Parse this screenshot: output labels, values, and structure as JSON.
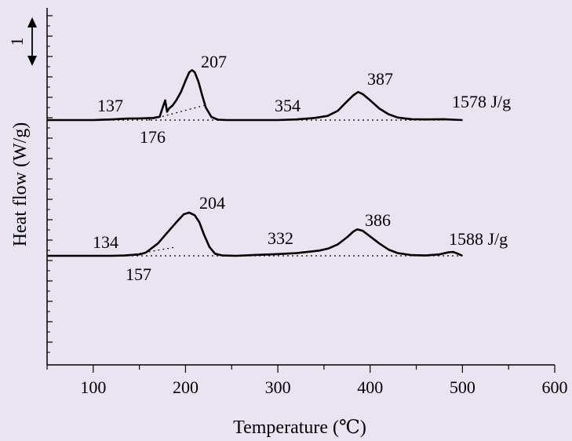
{
  "chart_data": {
    "type": "line",
    "title": "",
    "xlabel": "Temperature (℃)",
    "ylabel": "Heat flow (W/g)",
    "xlim": [
      50,
      600
    ],
    "xticks": [
      100,
      200,
      300,
      400,
      500,
      600
    ],
    "yticks_labeled": false,
    "grid": false,
    "legend": "none",
    "arrow_label": "1",
    "series": [
      {
        "x": [
          50,
          80,
          100,
          120,
          137,
          150,
          165,
          172,
          176,
          178,
          180,
          182,
          186,
          190,
          195,
          200,
          204,
          207,
          210,
          214,
          218,
          222,
          228,
          235,
          245,
          260,
          280,
          300,
          320,
          340,
          354,
          365,
          375,
          382,
          387,
          392,
          400,
          410,
          420,
          430,
          445,
          460,
          480,
          490,
          500
        ],
        "y": [
          0.0,
          0.0,
          0.0,
          0.03,
          0.07,
          0.08,
          0.1,
          0.16,
          0.7,
          0.95,
          0.4,
          0.55,
          0.7,
          0.95,
          1.35,
          1.9,
          2.3,
          2.4,
          2.3,
          1.85,
          1.2,
          0.6,
          0.15,
          0.02,
          0.0,
          0.0,
          0.0,
          0.0,
          0.03,
          0.1,
          0.2,
          0.45,
          0.9,
          1.2,
          1.35,
          1.25,
          0.95,
          0.55,
          0.28,
          0.12,
          0.04,
          0.03,
          0.04,
          0.02,
          0.0
        ]
      },
      {
        "x": [
          50,
          80,
          100,
          120,
          134,
          150,
          157,
          170,
          180,
          190,
          198,
          204,
          210,
          215,
          220,
          226,
          232,
          240,
          255,
          275,
          300,
          320,
          332,
          345,
          355,
          365,
          375,
          382,
          386,
          392,
          400,
          410,
          420,
          430,
          445,
          460,
          475,
          485,
          490,
          495,
          500
        ],
        "y": [
          0.0,
          0.0,
          0.0,
          0.0,
          0.02,
          0.08,
          0.18,
          0.7,
          1.3,
          1.9,
          2.35,
          2.45,
          2.3,
          1.9,
          1.2,
          0.5,
          0.12,
          0.02,
          0.0,
          0.05,
          0.1,
          0.15,
          0.22,
          0.3,
          0.42,
          0.65,
          1.05,
          1.38,
          1.5,
          1.42,
          1.1,
          0.7,
          0.35,
          0.15,
          0.04,
          0.02,
          0.08,
          0.2,
          0.22,
          0.12,
          0.0
        ]
      }
    ],
    "baselines": [
      {
        "x": [
          50,
          500
        ],
        "y": [
          0,
          0
        ]
      },
      {
        "x": [
          160,
          220
        ],
        "y": [
          0.0,
          0.7
        ]
      },
      {
        "x": [
          50,
          500
        ],
        "y": [
          0,
          0
        ]
      },
      {
        "x": [
          135,
          190
        ],
        "y": [
          0.0,
          0.5
        ]
      }
    ],
    "annotations": [
      {
        "text": "137",
        "series": 0,
        "x": 137
      },
      {
        "text": "176",
        "series": 0,
        "x": 176
      },
      {
        "text": "207",
        "series": 0,
        "x": 207
      },
      {
        "text": "354",
        "series": 0,
        "x": 354
      },
      {
        "text": "387",
        "series": 0,
        "x": 387
      },
      {
        "text": "1578 J/g",
        "series": 0
      },
      {
        "text": "134",
        "series": 1,
        "x": 134
      },
      {
        "text": "157",
        "series": 1,
        "x": 157
      },
      {
        "text": "204",
        "series": 1,
        "x": 204
      },
      {
        "text": "332",
        "series": 1,
        "x": 332
      },
      {
        "text": "386",
        "series": 1,
        "x": 386
      },
      {
        "text": "1588 J/g",
        "series": 1
      }
    ]
  }
}
